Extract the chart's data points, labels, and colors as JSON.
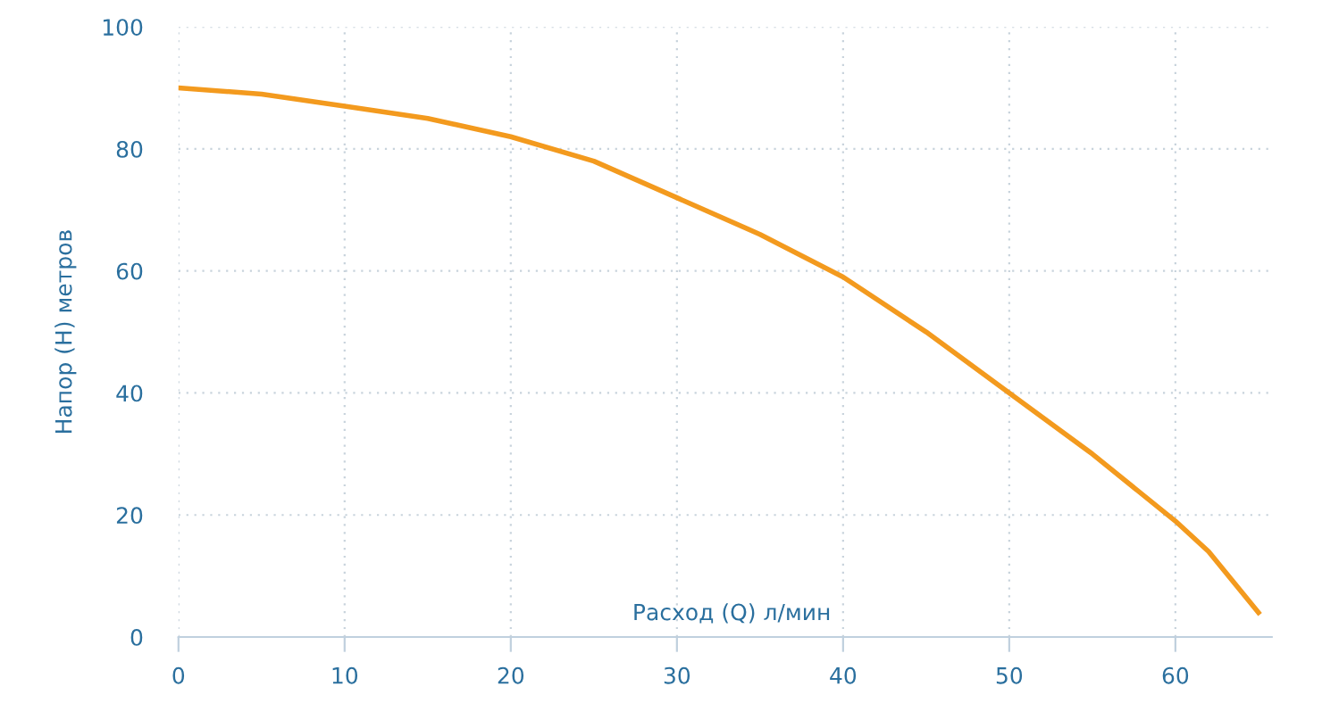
{
  "chart_data": {
    "type": "line",
    "xlabel": "Расход (Q) л/мин",
    "ylabel": "Напор (H) метров",
    "x": [
      0,
      5,
      10,
      15,
      20,
      25,
      30,
      35,
      40,
      45,
      50,
      55,
      60,
      62,
      65
    ],
    "series": [
      {
        "color": "#f39a1e",
        "values": [
          90,
          89,
          87,
          85,
          82,
          78,
          72,
          66,
          59,
          50,
          40,
          30,
          19,
          14,
          4
        ]
      }
    ],
    "xlim": [
      0,
      65.8
    ],
    "xticks": [
      0,
      10,
      20,
      30,
      40,
      50,
      60
    ],
    "ylim": [
      0,
      100
    ],
    "yticks": [
      0,
      20,
      40,
      60,
      80,
      100
    ],
    "grid": true,
    "legend": false,
    "marker": "none",
    "line_style": "solid"
  }
}
